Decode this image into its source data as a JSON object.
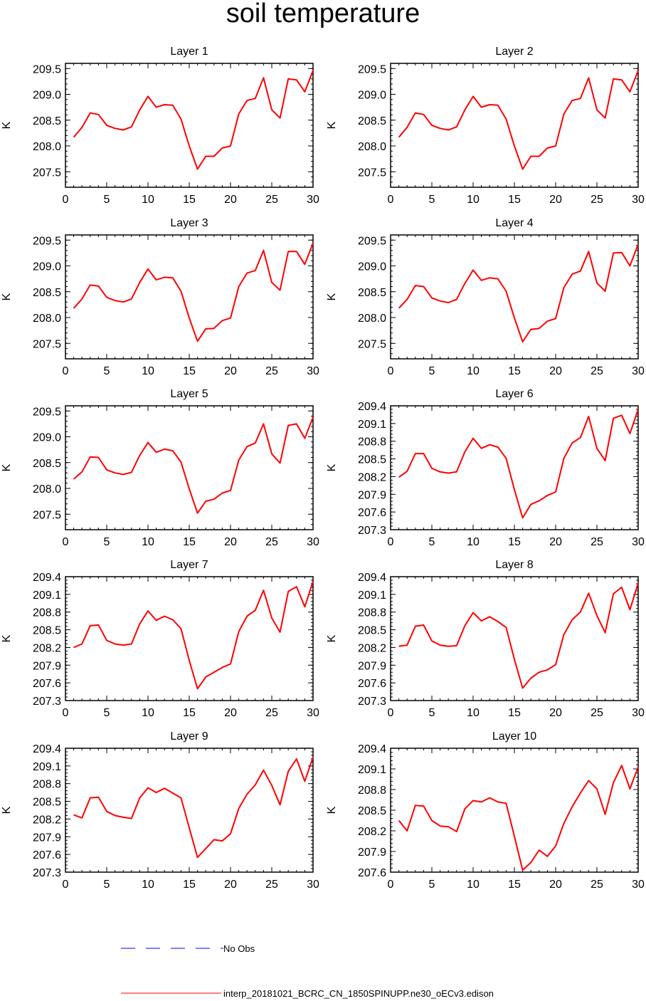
{
  "title": "soil temperature",
  "colors": {
    "model_line": "#ff0000",
    "obs_line": "#0000ff",
    "axis": "#000000"
  },
  "legend": {
    "obs_label": "No Obs",
    "model_label": "interp_20181021_BCRC_CN_1850SPINUPP.ne30_oECv3.edison"
  },
  "chart_data": [
    {
      "type": "line",
      "title": "Layer 1",
      "xlabel": "",
      "ylabel": "K",
      "xlim": [
        0,
        30
      ],
      "ylim": [
        207.2,
        209.6
      ],
      "xticks": [
        0,
        5,
        10,
        15,
        20,
        25,
        30
      ],
      "yticks": [
        207.5,
        208.0,
        208.5,
        209.0,
        209.5
      ],
      "ytick_labels": [
        "207.5",
        "208.0",
        "208.5",
        "209.0",
        "209.5"
      ],
      "x": [
        1,
        2,
        3,
        4,
        5,
        6,
        7,
        8,
        9,
        10,
        11,
        12,
        13,
        14,
        15,
        16,
        17,
        18,
        19,
        20,
        21,
        22,
        23,
        24,
        25,
        26,
        27,
        28,
        29,
        30
      ],
      "series": [
        {
          "name": "interp_20181021_BCRC_CN_1850SPINUPP.ne30_oECv3.edison",
          "values": [
            208.17,
            208.36,
            208.64,
            208.61,
            208.4,
            208.34,
            208.31,
            208.37,
            208.7,
            208.96,
            208.75,
            208.8,
            208.79,
            208.52,
            208.0,
            207.55,
            207.8,
            207.8,
            207.96,
            208.0,
            208.62,
            208.88,
            208.92,
            209.32,
            208.7,
            208.54,
            209.3,
            209.28,
            209.05,
            209.46
          ]
        }
      ]
    },
    {
      "type": "line",
      "title": "Layer 2",
      "xlabel": "",
      "ylabel": "K",
      "xlim": [
        0,
        30
      ],
      "ylim": [
        207.2,
        209.6
      ],
      "xticks": [
        0,
        5,
        10,
        15,
        20,
        25,
        30
      ],
      "yticks": [
        207.5,
        208.0,
        208.5,
        209.0,
        209.5
      ],
      "ytick_labels": [
        "207.5",
        "208.0",
        "208.5",
        "209.0",
        "209.5"
      ],
      "x": [
        1,
        2,
        3,
        4,
        5,
        6,
        7,
        8,
        9,
        10,
        11,
        12,
        13,
        14,
        15,
        16,
        17,
        18,
        19,
        20,
        21,
        22,
        23,
        24,
        25,
        26,
        27,
        28,
        29,
        30
      ],
      "series": [
        {
          "name": "interp_20181021_BCRC_CN_1850SPINUPP.ne30_oECv3.edison",
          "values": [
            208.17,
            208.36,
            208.64,
            208.61,
            208.4,
            208.34,
            208.31,
            208.37,
            208.7,
            208.96,
            208.75,
            208.8,
            208.79,
            208.52,
            208.0,
            207.55,
            207.8,
            207.8,
            207.96,
            208.0,
            208.62,
            208.88,
            208.92,
            209.32,
            208.7,
            208.54,
            209.3,
            209.28,
            209.05,
            209.46
          ]
        }
      ]
    },
    {
      "type": "line",
      "title": "Layer 3",
      "xlabel": "",
      "ylabel": "K",
      "xlim": [
        0,
        30
      ],
      "ylim": [
        207.2,
        209.6
      ],
      "xticks": [
        0,
        5,
        10,
        15,
        20,
        25,
        30
      ],
      "yticks": [
        207.5,
        208.0,
        208.5,
        209.0,
        209.5
      ],
      "ytick_labels": [
        "207.5",
        "208.0",
        "208.5",
        "209.0",
        "209.5"
      ],
      "x": [
        1,
        2,
        3,
        4,
        5,
        6,
        7,
        8,
        9,
        10,
        11,
        12,
        13,
        14,
        15,
        16,
        17,
        18,
        19,
        20,
        21,
        22,
        23,
        24,
        25,
        26,
        27,
        28,
        29,
        30
      ],
      "series": [
        {
          "name": "interp_20181021_BCRC_CN_1850SPINUPP.ne30_oECv3.edison",
          "values": [
            208.18,
            208.36,
            208.63,
            208.61,
            208.39,
            208.33,
            208.3,
            208.36,
            208.68,
            208.94,
            208.73,
            208.78,
            208.77,
            208.51,
            207.99,
            207.54,
            207.78,
            207.79,
            207.94,
            207.99,
            208.6,
            208.86,
            208.91,
            209.3,
            208.68,
            208.53,
            209.28,
            209.28,
            209.03,
            209.44
          ]
        }
      ]
    },
    {
      "type": "line",
      "title": "Layer 4",
      "xlabel": "",
      "ylabel": "K",
      "xlim": [
        0,
        30
      ],
      "ylim": [
        207.2,
        209.6
      ],
      "xticks": [
        0,
        5,
        10,
        15,
        20,
        25,
        30
      ],
      "yticks": [
        207.5,
        208.0,
        208.5,
        209.0,
        209.5
      ],
      "ytick_labels": [
        "207.5",
        "208.0",
        "208.5",
        "209.0",
        "209.5"
      ],
      "x": [
        1,
        2,
        3,
        4,
        5,
        6,
        7,
        8,
        9,
        10,
        11,
        12,
        13,
        14,
        15,
        16,
        17,
        18,
        19,
        20,
        21,
        22,
        23,
        24,
        25,
        26,
        27,
        28,
        29,
        30
      ],
      "series": [
        {
          "name": "interp_20181021_BCRC_CN_1850SPINUPP.ne30_oECv3.edison",
          "values": [
            208.18,
            208.35,
            208.62,
            208.6,
            208.38,
            208.32,
            208.29,
            208.35,
            208.66,
            208.92,
            208.72,
            208.77,
            208.75,
            208.51,
            207.99,
            207.53,
            207.77,
            207.79,
            207.93,
            207.98,
            208.58,
            208.84,
            208.9,
            209.28,
            208.67,
            208.51,
            209.25,
            209.26,
            209.0,
            209.42
          ]
        }
      ]
    },
    {
      "type": "line",
      "title": "Layer 5",
      "xlabel": "",
      "ylabel": "K",
      "xlim": [
        0,
        30
      ],
      "ylim": [
        207.2,
        209.6
      ],
      "xticks": [
        0,
        5,
        10,
        15,
        20,
        25,
        30
      ],
      "yticks": [
        207.5,
        208.0,
        208.5,
        209.0,
        209.5
      ],
      "ytick_labels": [
        "207.5",
        "208.0",
        "208.5",
        "209.0",
        "209.5"
      ],
      "x": [
        1,
        2,
        3,
        4,
        5,
        6,
        7,
        8,
        9,
        10,
        11,
        12,
        13,
        14,
        15,
        16,
        17,
        18,
        19,
        20,
        21,
        22,
        23,
        24,
        25,
        26,
        27,
        28,
        29,
        30
      ],
      "series": [
        {
          "name": "interp_20181021_BCRC_CN_1850SPINUPP.ne30_oECv3.edison",
          "values": [
            208.18,
            208.32,
            208.61,
            208.6,
            208.36,
            208.3,
            208.27,
            208.31,
            208.64,
            208.89,
            208.7,
            208.76,
            208.73,
            208.51,
            207.99,
            207.52,
            207.75,
            207.79,
            207.91,
            207.96,
            208.55,
            208.81,
            208.88,
            209.25,
            208.67,
            208.49,
            209.22,
            209.25,
            208.97,
            209.38
          ]
        }
      ]
    },
    {
      "type": "line",
      "title": "Layer 6",
      "xlabel": "",
      "ylabel": "K",
      "xlim": [
        0,
        30
      ],
      "ylim": [
        207.3,
        209.4
      ],
      "xticks": [
        0,
        5,
        10,
        15,
        20,
        25,
        30
      ],
      "yticks": [
        207.3,
        207.6,
        207.9,
        208.2,
        208.5,
        208.8,
        209.1,
        209.4
      ],
      "ytick_labels": [
        "207.3",
        "207.6",
        "207.9",
        "208.2",
        "208.5",
        "208.8",
        "209.1",
        "209.4"
      ],
      "x": [
        1,
        2,
        3,
        4,
        5,
        6,
        7,
        8,
        9,
        10,
        11,
        12,
        13,
        14,
        15,
        16,
        17,
        18,
        19,
        20,
        21,
        22,
        23,
        24,
        25,
        26,
        27,
        28,
        29,
        30
      ],
      "series": [
        {
          "name": "interp_20181021_BCRC_CN_1850SPINUPP.ne30_oECv3.edison",
          "values": [
            208.19,
            208.29,
            208.59,
            208.59,
            208.34,
            208.28,
            208.26,
            208.28,
            208.62,
            208.85,
            208.68,
            208.74,
            208.7,
            208.51,
            207.98,
            207.5,
            207.73,
            207.79,
            207.88,
            207.94,
            208.51,
            208.77,
            208.86,
            209.22,
            208.68,
            208.47,
            209.19,
            209.24,
            208.93,
            209.34
          ]
        }
      ]
    },
    {
      "type": "line",
      "title": "Layer 7",
      "xlabel": "",
      "ylabel": "K",
      "xlim": [
        0,
        30
      ],
      "ylim": [
        207.3,
        209.4
      ],
      "xticks": [
        0,
        5,
        10,
        15,
        20,
        25,
        30
      ],
      "yticks": [
        207.3,
        207.6,
        207.9,
        208.2,
        208.5,
        208.8,
        209.1,
        209.4
      ],
      "ytick_labels": [
        "207.3",
        "207.6",
        "207.9",
        "208.2",
        "208.5",
        "208.8",
        "209.1",
        "209.4"
      ],
      "x": [
        1,
        2,
        3,
        4,
        5,
        6,
        7,
        8,
        9,
        10,
        11,
        12,
        13,
        14,
        15,
        16,
        17,
        18,
        19,
        20,
        21,
        22,
        23,
        24,
        25,
        26,
        27,
        28,
        29,
        30
      ],
      "series": [
        {
          "name": "interp_20181021_BCRC_CN_1850SPINUPP.ne30_oECv3.edison",
          "values": [
            208.2,
            208.26,
            208.57,
            208.58,
            208.32,
            208.26,
            208.24,
            208.26,
            208.6,
            208.82,
            208.66,
            208.73,
            208.67,
            208.52,
            207.98,
            207.5,
            207.7,
            207.78,
            207.86,
            207.92,
            208.47,
            208.73,
            208.83,
            209.17,
            208.7,
            208.46,
            209.15,
            209.23,
            208.89,
            209.32
          ]
        }
      ]
    },
    {
      "type": "line",
      "title": "Layer 8",
      "xlabel": "",
      "ylabel": "K",
      "xlim": [
        0,
        30
      ],
      "ylim": [
        207.3,
        209.4
      ],
      "xticks": [
        0,
        5,
        10,
        15,
        20,
        25,
        30
      ],
      "yticks": [
        207.3,
        207.6,
        207.9,
        208.2,
        208.5,
        208.8,
        209.1,
        209.4
      ],
      "ytick_labels": [
        "207.3",
        "207.6",
        "207.9",
        "208.2",
        "208.5",
        "208.8",
        "209.1",
        "209.4"
      ],
      "x": [
        1,
        2,
        3,
        4,
        5,
        6,
        7,
        8,
        9,
        10,
        11,
        12,
        13,
        14,
        15,
        16,
        17,
        18,
        19,
        20,
        21,
        22,
        23,
        24,
        25,
        26,
        27,
        28,
        29,
        30
      ],
      "series": [
        {
          "name": "interp_20181021_BCRC_CN_1850SPINUPP.ne30_oECv3.edison",
          "values": [
            208.22,
            208.24,
            208.56,
            208.58,
            208.31,
            208.24,
            208.22,
            208.23,
            208.57,
            208.79,
            208.65,
            208.72,
            208.64,
            208.54,
            208.0,
            207.51,
            207.68,
            207.78,
            207.82,
            207.91,
            208.42,
            208.67,
            208.8,
            209.12,
            208.74,
            208.45,
            209.11,
            209.22,
            208.84,
            209.29
          ]
        }
      ]
    },
    {
      "type": "line",
      "title": "Layer 9",
      "xlabel": "",
      "ylabel": "K",
      "xlim": [
        0,
        30
      ],
      "ylim": [
        207.3,
        209.4
      ],
      "xticks": [
        0,
        5,
        10,
        15,
        20,
        25,
        30
      ],
      "yticks": [
        207.3,
        207.6,
        207.9,
        208.2,
        208.5,
        208.8,
        209.1,
        209.4
      ],
      "ytick_labels": [
        "207.3",
        "207.6",
        "207.9",
        "208.2",
        "208.5",
        "208.8",
        "209.1",
        "209.4"
      ],
      "x": [
        1,
        2,
        3,
        4,
        5,
        6,
        7,
        8,
        9,
        10,
        11,
        12,
        13,
        14,
        15,
        16,
        17,
        18,
        19,
        20,
        21,
        22,
        23,
        24,
        25,
        26,
        27,
        28,
        29,
        30
      ],
      "series": [
        {
          "name": "interp_20181021_BCRC_CN_1850SPINUPP.ne30_oECv3.edison",
          "values": [
            208.27,
            208.22,
            208.56,
            208.57,
            208.33,
            208.26,
            208.23,
            208.21,
            208.56,
            208.73,
            208.65,
            208.72,
            208.64,
            208.56,
            208.05,
            207.55,
            207.7,
            207.85,
            207.83,
            207.95,
            208.38,
            208.62,
            208.78,
            209.03,
            208.77,
            208.44,
            209.01,
            209.22,
            208.84,
            209.25
          ]
        }
      ]
    },
    {
      "type": "line",
      "title": "Layer 10",
      "xlabel": "",
      "ylabel": "K",
      "xlim": [
        0,
        30
      ],
      "ylim": [
        207.6,
        209.4
      ],
      "xticks": [
        0,
        5,
        10,
        15,
        20,
        25,
        30
      ],
      "yticks": [
        207.6,
        207.9,
        208.2,
        208.5,
        208.8,
        209.1,
        209.4
      ],
      "ytick_labels": [
        "207.6",
        "207.9",
        "208.2",
        "208.5",
        "208.8",
        "209.1",
        "209.4"
      ],
      "x": [
        1,
        2,
        3,
        4,
        5,
        6,
        7,
        8,
        9,
        10,
        11,
        12,
        13,
        14,
        15,
        16,
        17,
        18,
        19,
        20,
        21,
        22,
        23,
        24,
        25,
        26,
        27,
        28,
        29,
        30
      ],
      "series": [
        {
          "name": "interp_20181021_BCRC_CN_1850SPINUPP.ne30_oECv3.edison",
          "values": [
            208.35,
            208.2,
            208.57,
            208.56,
            208.35,
            208.27,
            208.26,
            208.19,
            208.52,
            208.64,
            208.62,
            208.68,
            208.62,
            208.6,
            208.12,
            207.63,
            207.74,
            207.92,
            207.83,
            207.98,
            208.31,
            208.55,
            208.75,
            208.93,
            208.81,
            208.44,
            208.9,
            209.15,
            208.81,
            209.13
          ]
        }
      ]
    }
  ]
}
